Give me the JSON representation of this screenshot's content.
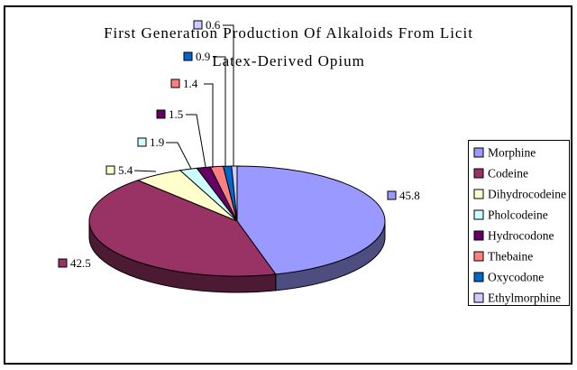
{
  "chart_data": {
    "type": "pie",
    "is_3d": true,
    "title": "First Generation Production Of Alkaloids From Licit Latex-Derived Opium",
    "title_lines": [
      "First Generation Production Of Alkaloids From Licit",
      "Latex-Derived Opium"
    ],
    "legend_position": "right",
    "data_labels": "value",
    "series": [
      {
        "name": "Morphine",
        "value": 45.8,
        "color": "#9999FF"
      },
      {
        "name": "Codeine",
        "value": 42.5,
        "color": "#993366"
      },
      {
        "name": "Dihydrocodeine",
        "value": 5.4,
        "color": "#FFFFCC"
      },
      {
        "name": "Pholcodeine",
        "value": 1.9,
        "color": "#CCFFFF"
      },
      {
        "name": "Hydrocodone",
        "value": 1.5,
        "color": "#660066"
      },
      {
        "name": "Thebaine",
        "value": 1.4,
        "color": "#FF8080"
      },
      {
        "name": "Oxycodone",
        "value": 0.9,
        "color": "#0066CC"
      },
      {
        "name": "Ethylmorphine",
        "value": 0.6,
        "color": "#CCCCFF"
      }
    ]
  },
  "colors": {
    "background": "#FFFFFF",
    "border": "#000000",
    "text": "#000000"
  }
}
